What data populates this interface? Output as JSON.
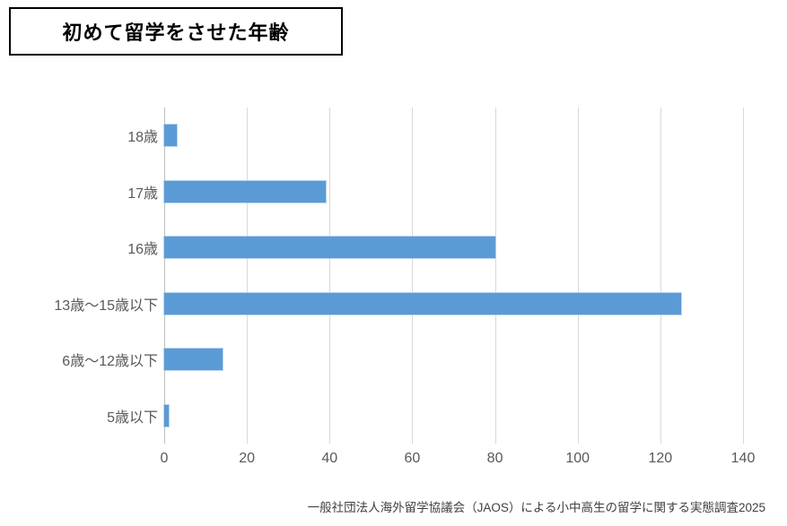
{
  "title": "初めて留学をさせた年齢",
  "source": "一般社団法人海外留学協議会（JAOS）による小中高生の留学に関する実態調査2025",
  "chart_data": {
    "type": "bar",
    "orientation": "horizontal",
    "title": "初めて留学をさせた年齢",
    "categories": [
      "18歳",
      "17歳",
      "16歳",
      "13歳～15歳以下",
      "6歳～12歳以下",
      "5歳以下"
    ],
    "values": [
      3,
      39,
      80,
      125,
      14,
      1
    ],
    "xlabel": "",
    "ylabel": "",
    "xlim": [
      0,
      140
    ],
    "xticks": [
      0,
      20,
      40,
      60,
      80,
      100,
      120,
      140
    ],
    "grid": true,
    "legend": false,
    "bar_color": "#5B9BD5",
    "gridline_color": "#D9D9D9",
    "axis_line_color": "#BFBFBF",
    "label_color": "#595959"
  }
}
